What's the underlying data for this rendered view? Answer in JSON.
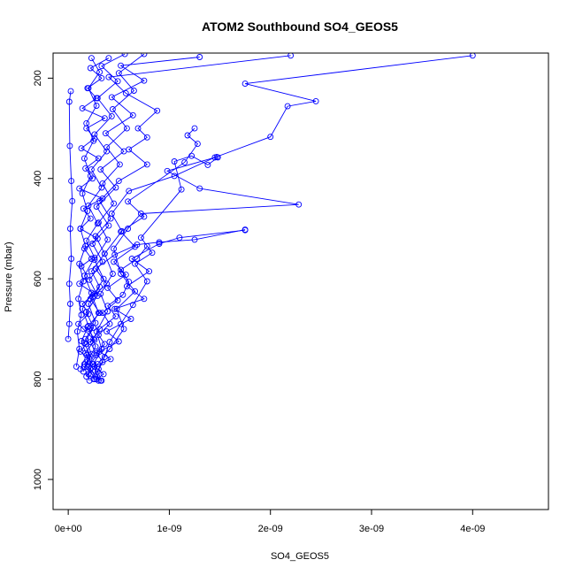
{
  "chart_data": {
    "type": "line",
    "title": "ATOM2 Southbound SO4_GEOS5",
    "xlabel": "SO4_GEOS5",
    "ylabel": "Pressure (mbar)",
    "xlim": [
      -1.5e-10,
      4.75e-09
    ],
    "ylim": [
      1060,
      150
    ],
    "y_reversed": true,
    "x_ticks": [
      0,
      1e-09,
      2e-09,
      3e-09,
      4e-09
    ],
    "x_tick_labels": [
      "0e+00",
      "1e-09",
      "2e-09",
      "3e-09",
      "4e-09"
    ],
    "y_ticks": [
      200,
      400,
      600,
      800,
      1000
    ],
    "y_tick_labels": [
      "200",
      "400",
      "600",
      "800",
      "1000"
    ],
    "grid": false,
    "legend": "none",
    "marker": "open-circle",
    "colors": {
      "series": "#0000ff",
      "axes": "#000000",
      "background": "#ffffff"
    },
    "series": [
      {
        "points": [
          [
            3.2e-10,
            803
          ],
          [
            2.7e-10,
            795
          ],
          [
            2.2e-10,
            780
          ],
          [
            1.6e-10,
            770
          ],
          [
            2.1e-10,
            760
          ],
          [
            1.2e-10,
            745
          ],
          [
            1.8e-10,
            730
          ],
          [
            2.5e-10,
            720
          ],
          [
            1.5e-10,
            700
          ],
          [
            1e-10,
            690
          ],
          [
            2e-10,
            670
          ],
          [
            1.4e-10,
            650
          ],
          [
            2.6e-10,
            630
          ],
          [
            1.1e-10,
            610
          ],
          [
            1.9e-10,
            595
          ],
          [
            1.3e-10,
            575
          ],
          [
            2.3e-10,
            560
          ],
          [
            1.6e-10,
            540
          ],
          [
            2.9e-10,
            520
          ],
          [
            1.2e-10,
            500
          ],
          [
            2.2e-10,
            480
          ],
          [
            1.5e-10,
            460
          ],
          [
            3.4e-10,
            440
          ],
          [
            1.1e-10,
            420
          ],
          [
            2.4e-10,
            400
          ],
          [
            1.7e-10,
            380
          ],
          [
            3e-10,
            360
          ],
          [
            1.3e-10,
            340
          ],
          [
            2.6e-10,
            320
          ],
          [
            1.8e-10,
            300
          ],
          [
            3.6e-10,
            280
          ],
          [
            1.4e-10,
            260
          ],
          [
            2.8e-10,
            240
          ],
          [
            1.9e-10,
            220
          ],
          [
            3.3e-10,
            200
          ],
          [
            2.2e-10,
            180
          ],
          [
            4e-10,
            160
          ]
        ]
      },
      {
        "points": [
          [
            2.8e-10,
            800
          ],
          [
            3.5e-10,
            790
          ],
          [
            2.6e-10,
            775
          ],
          [
            4.2e-10,
            760
          ],
          [
            3.1e-10,
            745
          ],
          [
            5e-10,
            725
          ],
          [
            3.8e-10,
            705
          ],
          [
            6.2e-10,
            680
          ],
          [
            4.6e-10,
            660
          ],
          [
            7.5e-10,
            640
          ],
          [
            5.8e-10,
            615
          ],
          [
            8e-10,
            585
          ],
          [
            6.3e-10,
            560
          ],
          [
            9e-10,
            530
          ],
          [
            1.1e-09,
            518
          ],
          [
            1.75e-09,
            503
          ]
        ]
      },
      {
        "points": [
          [
            2e-10,
            790
          ],
          [
            2.9e-10,
            770
          ],
          [
            4.1e-10,
            740
          ],
          [
            5.5e-10,
            700
          ],
          [
            4.8e-10,
            660
          ],
          [
            6.6e-10,
            625
          ],
          [
            5.2e-10,
            590
          ],
          [
            4.5e-10,
            540
          ],
          [
            5.9e-10,
            500
          ],
          [
            7.2e-10,
            470
          ],
          [
            2.28e-09,
            452
          ],
          [
            1.3e-09,
            420
          ],
          [
            9.8e-10,
            385
          ],
          [
            1.47e-09,
            357
          ]
        ]
      },
      {
        "points": [
          [
            3e-10,
            803
          ],
          [
            2.5e-10,
            770
          ],
          [
            3.3e-10,
            740
          ],
          [
            2.8e-10,
            705
          ],
          [
            3.9e-10,
            665
          ],
          [
            3.2e-10,
            630
          ],
          [
            4.4e-10,
            590
          ],
          [
            3.6e-10,
            550
          ],
          [
            5.3e-10,
            505
          ],
          [
            4.3e-10,
            470
          ],
          [
            6e-10,
            425
          ],
          [
            1.05e-09,
            395
          ],
          [
            1.45e-09,
            358
          ],
          [
            2e-09,
            317
          ],
          [
            2.17e-09,
            256
          ],
          [
            2.45e-09,
            246
          ],
          [
            1.75e-09,
            211
          ],
          [
            4e-09,
            155
          ]
        ]
      },
      {
        "points": [
          [
            2.3e-10,
            790
          ],
          [
            1.9e-10,
            765
          ],
          [
            2.7e-10,
            735
          ],
          [
            2.1e-10,
            700
          ],
          [
            3e-10,
            668
          ],
          [
            2.4e-10,
            636
          ],
          [
            3.5e-10,
            600
          ],
          [
            2.6e-10,
            562
          ],
          [
            3.9e-10,
            522
          ],
          [
            3e-10,
            488
          ],
          [
            4.5e-10,
            450
          ],
          [
            3.4e-10,
            410
          ],
          [
            5.1e-10,
            372
          ],
          [
            3.8e-10,
            338
          ],
          [
            5.8e-10,
            300
          ],
          [
            4.4e-10,
            262
          ],
          [
            6.5e-10,
            225
          ],
          [
            5e-10,
            190
          ],
          [
            7.5e-10,
            152
          ]
        ]
      },
      {
        "points": [
          [
            1.8e-10,
            795
          ],
          [
            2.4e-10,
            770
          ],
          [
            1.7e-10,
            748
          ],
          [
            2.6e-10,
            722
          ],
          [
            1.9e-10,
            696
          ],
          [
            3.1e-10,
            668
          ],
          [
            2.2e-10,
            640
          ],
          [
            3.8e-10,
            610
          ],
          [
            2.7e-10,
            580
          ],
          [
            4.6e-10,
            552
          ],
          [
            6.8e-10,
            532
          ],
          [
            9e-10,
            527
          ],
          [
            1.25e-09,
            522
          ],
          [
            1.75e-09,
            502
          ]
        ]
      },
      {
        "points": [
          [
            2.5e-10,
            800
          ],
          [
            3e-10,
            780
          ],
          [
            3.6e-10,
            756
          ],
          [
            4.1e-10,
            726
          ],
          [
            5.2e-10,
            690
          ],
          [
            6.4e-10,
            652
          ],
          [
            7.8e-10,
            605
          ],
          [
            6.6e-10,
            570
          ],
          [
            8.3e-10,
            548
          ],
          [
            7.2e-10,
            518
          ],
          [
            1.12e-09,
            422
          ],
          [
            1.05e-09,
            366
          ],
          [
            1.22e-09,
            355
          ],
          [
            1.38e-09,
            373
          ],
          [
            1.48e-09,
            358
          ]
        ]
      },
      {
        "points": [
          [
            1.5e-10,
            785
          ],
          [
            2.2e-10,
            755
          ],
          [
            1.6e-10,
            728
          ],
          [
            2.5e-10,
            698
          ],
          [
            1.8e-10,
            666
          ],
          [
            2.9e-10,
            634
          ],
          [
            2.1e-10,
            602
          ],
          [
            3.4e-10,
            566
          ],
          [
            2.4e-10,
            530
          ],
          [
            4e-10,
            494
          ],
          [
            2.8e-10,
            456
          ],
          [
            4.7e-10,
            418
          ],
          [
            3.2e-10,
            382
          ],
          [
            5.5e-10,
            346
          ],
          [
            3.7e-10,
            310
          ],
          [
            6.4e-10,
            274
          ],
          [
            4.3e-10,
            238
          ],
          [
            7.5e-10,
            205
          ],
          [
            5.2e-10,
            175
          ],
          [
            1.3e-09,
            158
          ]
        ]
      },
      {
        "points": [
          [
            2.1e-10,
            803
          ],
          [
            1.6e-10,
            776
          ],
          [
            2.3e-10,
            750
          ],
          [
            1.7e-10,
            720
          ],
          [
            2.7e-10,
            688
          ],
          [
            2e-10,
            650
          ],
          [
            3.1e-10,
            616
          ],
          [
            2.3e-10,
            585
          ],
          [
            3.6e-10,
            550
          ],
          [
            2.7e-10,
            515
          ],
          [
            4.2e-10,
            480
          ],
          [
            3.1e-10,
            445
          ],
          [
            5e-10,
            405
          ],
          [
            7.8e-10,
            372
          ],
          [
            6e-10,
            342
          ],
          [
            7.8e-10,
            318
          ],
          [
            6.9e-10,
            300
          ],
          [
            8.8e-10,
            265
          ],
          [
            5.7e-10,
            230
          ],
          [
            4e-10,
            198
          ],
          [
            2.2e-09,
            155
          ]
        ]
      },
      {
        "points": [
          [
            1.2e-10,
            780
          ],
          [
            1.8e-10,
            752
          ],
          [
            1.3e-10,
            724
          ],
          [
            2e-10,
            694
          ],
          [
            1.4e-10,
            660
          ],
          [
            2.3e-10,
            628
          ],
          [
            1.6e-10,
            594
          ],
          [
            2.6e-10,
            558
          ],
          [
            1.8e-10,
            524
          ],
          [
            2.9e-10,
            490
          ],
          [
            2e-10,
            454
          ],
          [
            3.3e-10,
            418
          ],
          [
            2.3e-10,
            382
          ],
          [
            3.8e-10,
            346
          ],
          [
            2.6e-10,
            312
          ],
          [
            4.3e-10,
            276
          ],
          [
            2.9e-10,
            240
          ],
          [
            4.9e-10,
            206
          ],
          [
            3.3e-10,
            176
          ],
          [
            5.6e-10,
            152
          ]
        ]
      },
      {
        "points": [
          [
            3.3e-10,
            803
          ],
          [
            2.9e-10,
            785
          ],
          [
            3.4e-10,
            766
          ],
          [
            2.8e-10,
            748
          ],
          [
            3.6e-10,
            730
          ],
          [
            3e-10,
            712
          ],
          [
            4.1e-10,
            690
          ],
          [
            3.4e-10,
            668
          ],
          [
            4.9e-10,
            643
          ],
          [
            3.9e-10,
            618
          ],
          [
            5.7e-10,
            592
          ],
          [
            4.5e-10,
            566
          ],
          [
            6.6e-10,
            536
          ],
          [
            5.2e-10,
            506
          ],
          [
            7.5e-10,
            476
          ],
          [
            5.9e-10,
            446
          ],
          [
            1.15e-09,
            368
          ],
          [
            1.28e-09,
            331
          ],
          [
            1.18e-09,
            314
          ],
          [
            1.25e-09,
            300
          ]
        ]
      },
      {
        "points": [
          [
            0.0,
            720
          ],
          [
            1e-11,
            690
          ],
          [
            2e-11,
            650
          ],
          [
            1e-11,
            610
          ],
          [
            3e-11,
            560
          ],
          [
            2e-11,
            500
          ],
          [
            4e-11,
            445
          ],
          [
            3e-11,
            405
          ],
          [
            1.5e-11,
            335
          ],
          [
            1e-11,
            247
          ],
          [
            2.5e-11,
            226
          ]
        ]
      },
      {
        "points": [
          [
            8e-11,
            775
          ],
          [
            1.1e-10,
            740
          ],
          [
            9e-11,
            705
          ],
          [
            1.3e-10,
            672
          ],
          [
            1e-10,
            640
          ],
          [
            1.5e-10,
            605
          ],
          [
            1.1e-10,
            570
          ],
          [
            1.7e-10,
            535
          ],
          [
            1.2e-10,
            500
          ],
          [
            1.9e-10,
            465
          ],
          [
            1.4e-10,
            430
          ],
          [
            2.2e-10,
            395
          ],
          [
            1.6e-10,
            360
          ],
          [
            2.5e-10,
            325
          ],
          [
            1.8e-10,
            290
          ],
          [
            2.8e-10,
            255
          ],
          [
            2e-10,
            220
          ],
          [
            3.1e-10,
            188
          ],
          [
            2.3e-10,
            160
          ]
        ]
      },
      {
        "points": [
          [
            2.6e-10,
            800
          ],
          [
            2e-10,
            776
          ],
          [
            2.8e-10,
            752
          ],
          [
            2.2e-10,
            726
          ],
          [
            3.1e-10,
            700
          ],
          [
            4.7e-10,
            675
          ],
          [
            3.9e-10,
            654
          ],
          [
            5.4e-10,
            632
          ],
          [
            6e-10,
            606
          ],
          [
            5.2e-10,
            582
          ],
          [
            6.8e-10,
            560
          ],
          [
            7.8e-10,
            535
          ]
        ]
      }
    ]
  }
}
